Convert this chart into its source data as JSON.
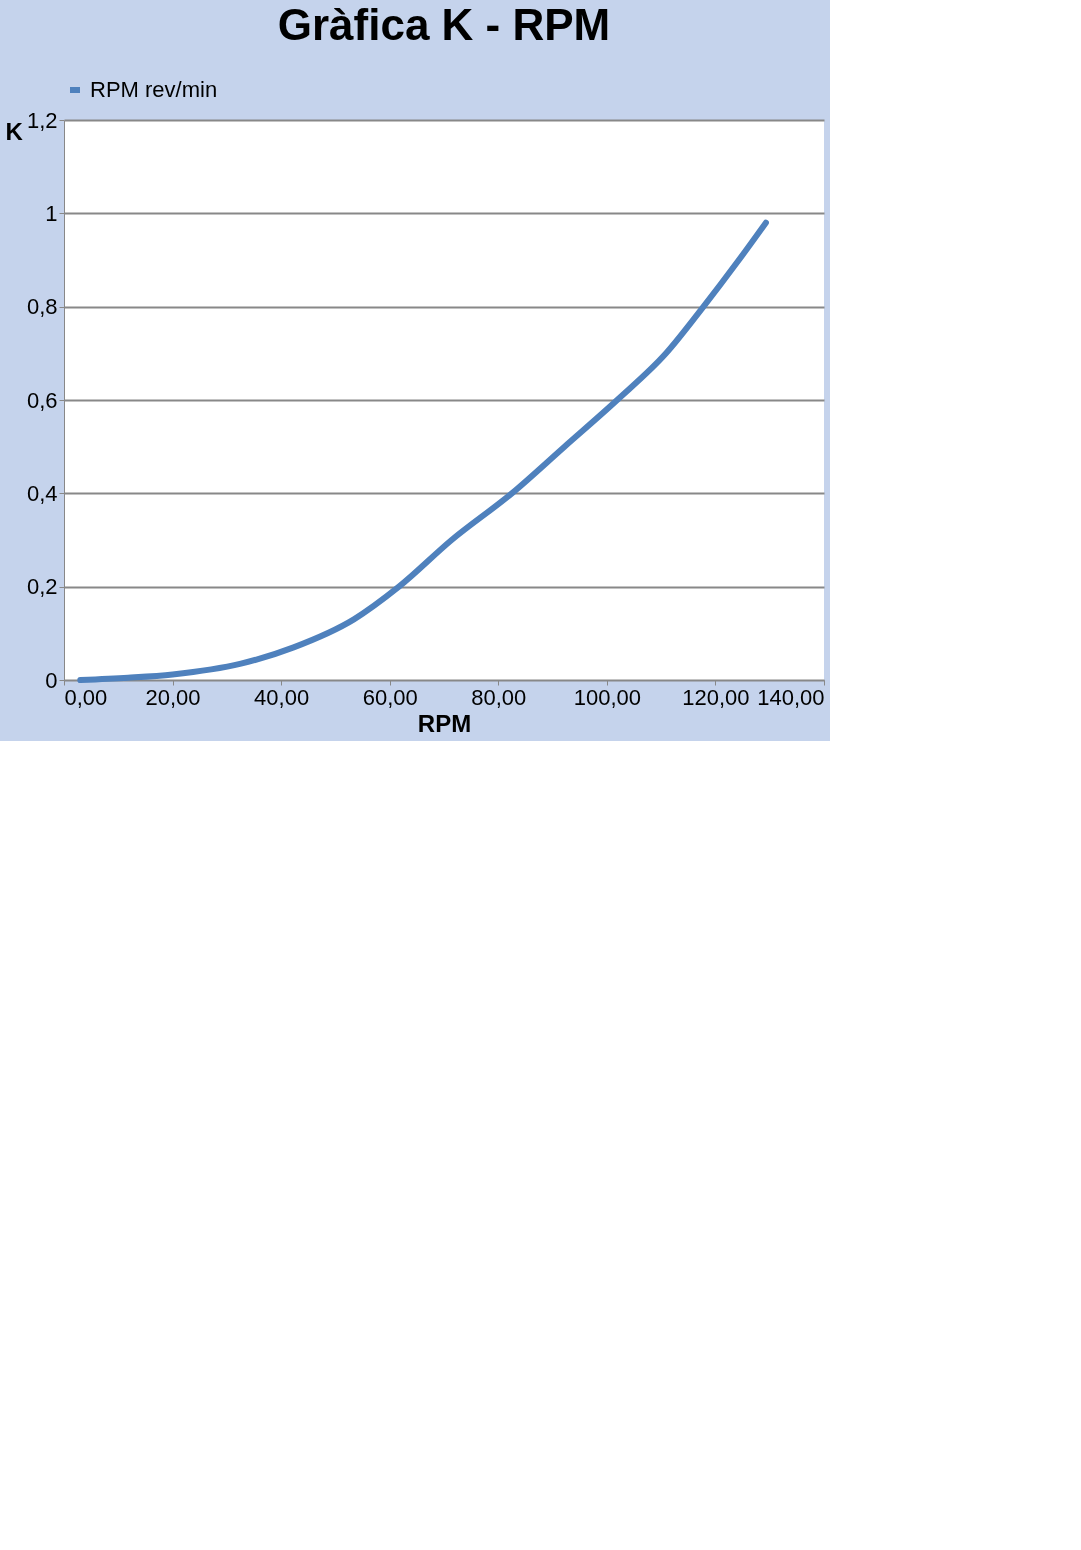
{
  "chart_data": {
    "type": "line",
    "title": "Gràfica K - RPM",
    "xlabel": "RPM",
    "ylabel": "K",
    "x": [
      3,
      11.8,
      20,
      32.6,
      42.3,
      53.4,
      61.7,
      71.4,
      82.5,
      92.2,
      101.9,
      110.9,
      117.8,
      124,
      129.3
    ],
    "series": [
      {
        "name": "RPM rev/min",
        "color": "#4f81bd",
        "values": [
          0,
          0.005,
          0.012,
          0.035,
          0.07,
          0.13,
          0.2,
          0.3,
          0.4,
          0.5,
          0.6,
          0.7,
          0.8,
          0.895,
          0.98
        ]
      }
    ],
    "xlim": [
      0,
      140
    ],
    "xticks": [
      {
        "value": 0,
        "label": "0,00"
      },
      {
        "value": 20,
        "label": "20,00"
      },
      {
        "value": 40,
        "label": "40,00"
      },
      {
        "value": 60,
        "label": "60,00"
      },
      {
        "value": 80,
        "label": "80,00"
      },
      {
        "value": 100,
        "label": "100,00"
      },
      {
        "value": 120,
        "label": "120,00"
      },
      {
        "value": 140,
        "label": "140,00"
      }
    ],
    "ylim": [
      0,
      1.2
    ],
    "yticks": [
      0,
      {
        "value": 0.2,
        "label": "0,2"
      },
      {
        "value": 0.4,
        "label": "0,4"
      },
      {
        "value": 0.6,
        "label": "0,6"
      },
      {
        "value": 0.8,
        "label": "0,8"
      },
      1,
      {
        "value": 1.2,
        "label": "1,2"
      }
    ],
    "grid": "y",
    "legend": "top",
    "marker": "none",
    "line_style": "solid"
  }
}
